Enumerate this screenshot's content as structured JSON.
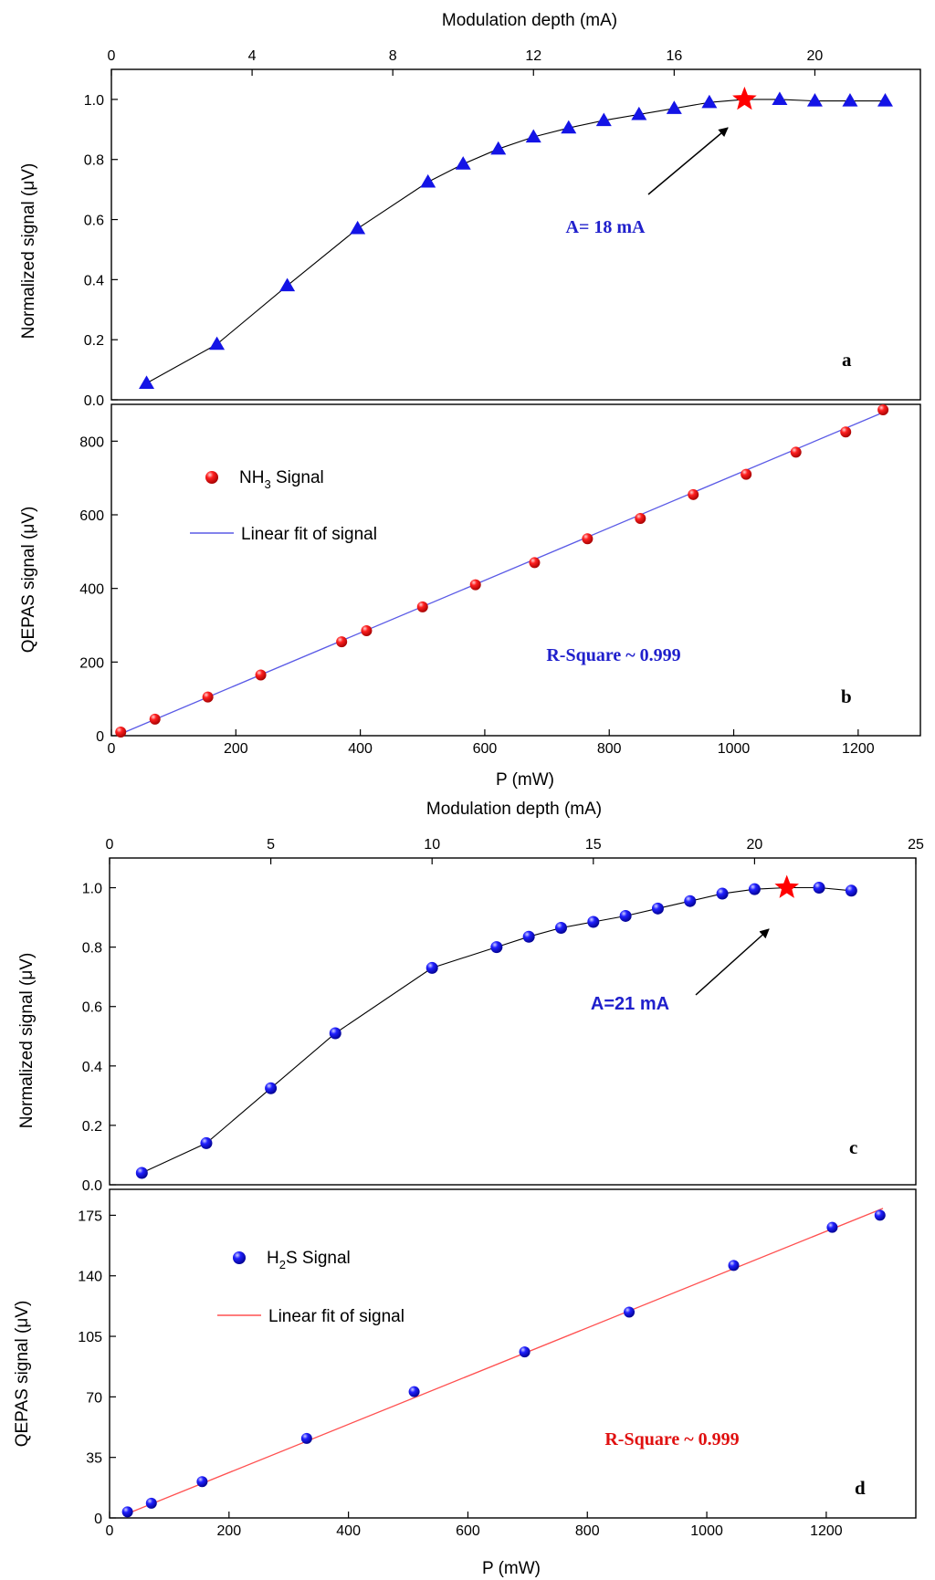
{
  "figure": {
    "colors": {
      "blue_marker": "#1414e6",
      "red_marker": "#ff1a1a",
      "red_star": "#ff0000",
      "black_line": "#000000",
      "blue_fit": "#5a5ae6",
      "red_fit": "#ff5050",
      "blue_annotation": "#2020cc",
      "red_annotation": "#e01010"
    }
  },
  "chart_data": [
    {
      "id": "a",
      "type": "line",
      "panel_label": "a",
      "title": "",
      "xlabel": "Modulation depth (mA)",
      "ylabel": "Normalized signal (μV)",
      "xlim": [
        0,
        23
      ],
      "ylim": [
        0,
        1.1
      ],
      "xticks": [
        0,
        4,
        8,
        12,
        16,
        20
      ],
      "yticks": [
        0.0,
        0.2,
        0.4,
        0.6,
        0.8,
        1.0
      ],
      "xtick_labels": [
        "0",
        "4",
        "8",
        "12",
        "16",
        "20"
      ],
      "ytick_labels": [
        "0.0",
        "0.2",
        "0.4",
        "0.6",
        "0.8",
        "1.0"
      ],
      "marker": "triangle",
      "x": [
        1,
        3,
        5,
        7,
        9,
        10,
        11,
        12,
        13,
        14,
        15,
        16,
        17,
        18,
        19,
        20,
        21,
        22
      ],
      "y": [
        0.055,
        0.185,
        0.38,
        0.57,
        0.725,
        0.785,
        0.835,
        0.875,
        0.905,
        0.93,
        0.95,
        0.97,
        0.99,
        1.0,
        1.0,
        0.995,
        0.995,
        0.995
      ],
      "highlight": {
        "x": 18,
        "y": 1.0,
        "marker": "star"
      },
      "annotation": {
        "text": "A= 18 mA",
        "x": 15.2,
        "y": 0.58
      }
    },
    {
      "id": "b",
      "type": "scatter",
      "panel_label": "b",
      "title": "",
      "xlabel": "P (mW)",
      "ylabel": "QEPAS signal (μV)",
      "xlim": [
        0,
        1300
      ],
      "ylim": [
        0,
        900
      ],
      "xticks": [
        0,
        200,
        400,
        600,
        800,
        1000,
        1200
      ],
      "yticks": [
        0,
        200,
        400,
        600,
        800
      ],
      "xtick_labels": [
        "0",
        "200",
        "400",
        "600",
        "800",
        "1000",
        "1200"
      ],
      "ytick_labels": [
        "0",
        "200",
        "400",
        "600",
        "800"
      ],
      "series": [
        {
          "name": "NH3 Signal",
          "legend_main": "NH",
          "legend_sub": "3",
          "legend_rest": " Signal",
          "marker": "sphere",
          "x": [
            15,
            70,
            155,
            240,
            370,
            410,
            500,
            585,
            680,
            765,
            850,
            935,
            1020,
            1100,
            1180,
            1240
          ],
          "y": [
            10,
            45,
            105,
            165,
            255,
            285,
            350,
            410,
            470,
            535,
            590,
            655,
            710,
            770,
            825,
            885
          ]
        },
        {
          "name": "Linear fit of signal",
          "type": "line",
          "x": [
            15,
            1240
          ],
          "y": [
            5,
            878
          ]
        }
      ],
      "annotation": {
        "text": "R-Square ~ 0.999",
        "x": 680,
        "y": 225
      }
    },
    {
      "id": "c",
      "type": "line",
      "panel_label": "c",
      "title": "",
      "xlabel": "Modulation depth (mA)",
      "ylabel": "Normalized signal (μV)",
      "xlim": [
        0,
        25
      ],
      "ylim": [
        0,
        1.1
      ],
      "xticks": [
        0,
        5,
        10,
        15,
        20,
        25
      ],
      "yticks": [
        0.0,
        0.2,
        0.4,
        0.6,
        0.8,
        1.0
      ],
      "xtick_labels": [
        "0",
        "5",
        "10",
        "15",
        "20",
        "25"
      ],
      "ytick_labels": [
        "0.0",
        "0.2",
        "0.4",
        "0.6",
        "0.8",
        "1.0"
      ],
      "marker": "sphere",
      "x": [
        1,
        3,
        5,
        7,
        10,
        12,
        13,
        14,
        15,
        16,
        17,
        18,
        19,
        20,
        21,
        22,
        23
      ],
      "y": [
        0.04,
        0.14,
        0.325,
        0.51,
        0.73,
        0.8,
        0.835,
        0.865,
        0.885,
        0.905,
        0.93,
        0.955,
        0.98,
        0.995,
        1.0,
        1.0,
        0.99
      ],
      "highlight": {
        "x": 21,
        "y": 1.0,
        "marker": "star"
      },
      "annotation": {
        "text": "A=21 mA",
        "x": 17.7,
        "y": 0.58
      }
    },
    {
      "id": "d",
      "type": "scatter",
      "panel_label": "d",
      "title": "",
      "xlabel": "P (mW)",
      "ylabel": "QEPAS signal (μV)",
      "xlim": [
        0,
        1350
      ],
      "ylim": [
        0,
        190
      ],
      "xticks": [
        0,
        200,
        400,
        600,
        800,
        1000,
        1200
      ],
      "yticks": [
        0,
        35,
        70,
        105,
        140,
        175
      ],
      "xtick_labels": [
        "0",
        "200",
        "400",
        "600",
        "800",
        "1000",
        "1200"
      ],
      "ytick_labels": [
        "0",
        "35",
        "70",
        "105",
        "140",
        "175"
      ],
      "series": [
        {
          "name": "H2S Signal",
          "legend_main": "H",
          "legend_sub": "2",
          "legend_rest": "S Signal",
          "marker": "sphere",
          "x": [
            30,
            70,
            155,
            330,
            510,
            695,
            870,
            1045,
            1210,
            1290
          ],
          "y": [
            3.5,
            8.5,
            21,
            46,
            73,
            96,
            119,
            146,
            168,
            175
          ]
        },
        {
          "name": "Linear fit of signal",
          "type": "line",
          "x": [
            30,
            1295
          ],
          "y": [
            2.5,
            179
          ]
        }
      ],
      "annotation": {
        "text": "R-Square ~ 0.999",
        "x": 1000,
        "y": 46
      }
    }
  ]
}
